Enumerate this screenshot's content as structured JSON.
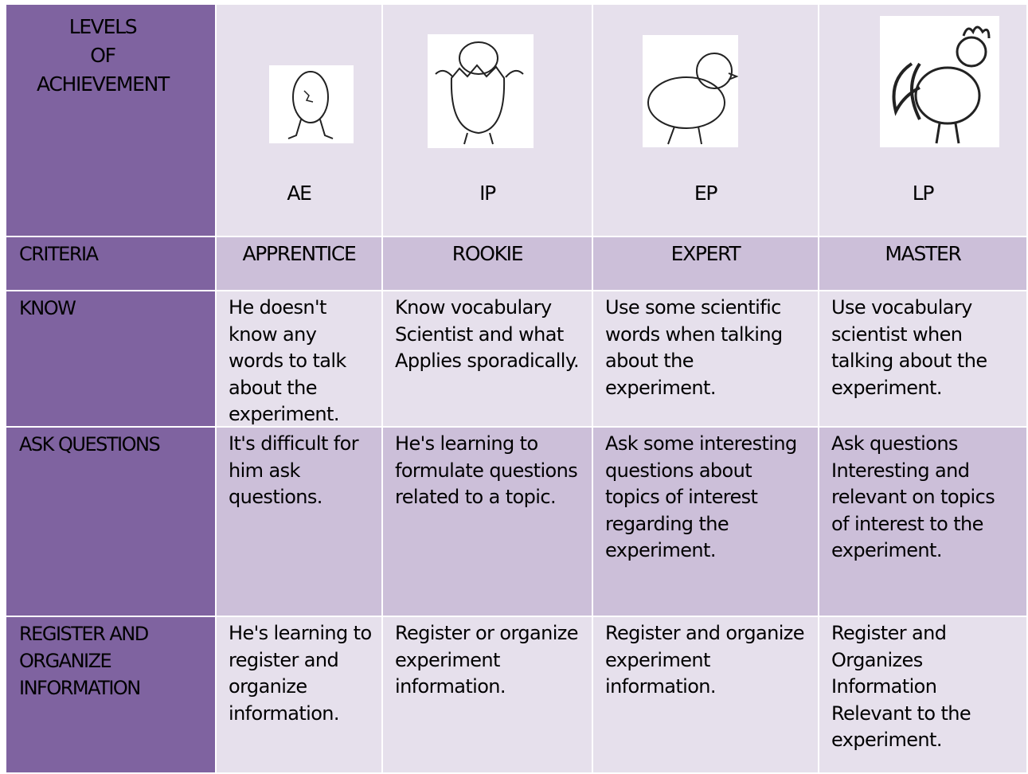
{
  "header": {
    "title_lines": [
      "LEVELS",
      "OF",
      "ACHIEVEMENT"
    ]
  },
  "levels": [
    {
      "code": "AE",
      "name": "APPRENTICE"
    },
    {
      "code": "IP",
      "name": "ROOKIE"
    },
    {
      "code": "EP",
      "name": "EXPERT"
    },
    {
      "code": "LP",
      "name": "MASTER"
    }
  ],
  "criteria_label": "CRITERIA",
  "rows": [
    {
      "criterion": "KNOW",
      "cells": [
        "He doesn't know any words to talk about the experiment.",
        "Know vocabulary Scientist and what Applies sporadically.",
        "Use some scientific words when talking about the experiment.",
        "Use vocabulary scientist when talking about the experiment."
      ]
    },
    {
      "criterion": "ASK QUESTIONS",
      "cells": [
        "It's difficult for him ask questions.",
        "He's learning to formulate questions related to a topic.",
        "Ask some interesting questions about topics of interest regarding the experiment.",
        "Ask questions Interesting and relevant on topics of interest to the experiment."
      ]
    },
    {
      "criterion": "REGISTER AND ORGANIZE INFORMATION",
      "cells": [
        "He's learning to register and organize information.",
        "Register or organize experiment information.",
        "Register and organize experiment information.",
        "Register and Organizes Information Relevant to the experiment."
      ]
    }
  ]
}
